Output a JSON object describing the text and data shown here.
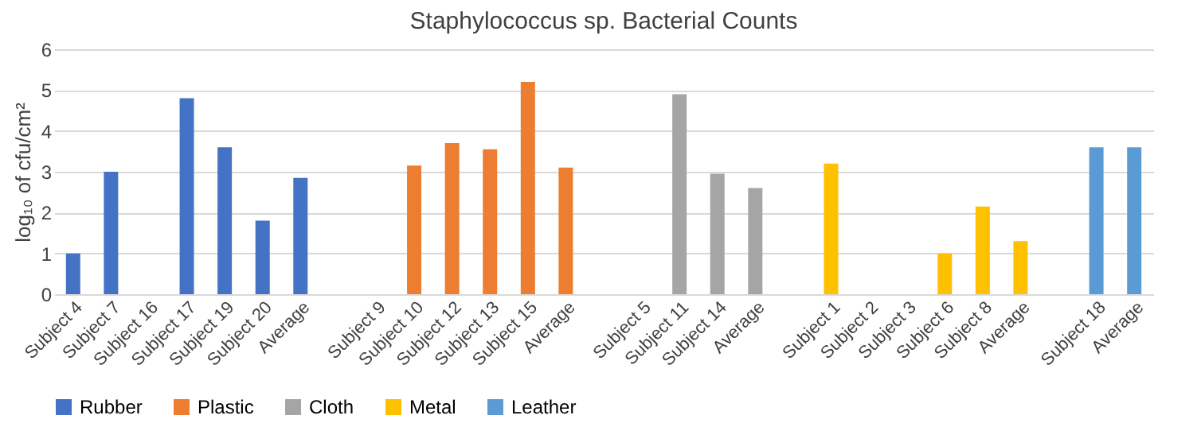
{
  "chart_data": {
    "type": "bar",
    "title": "Staphylococcus sp. Bacterial Counts",
    "ylabel": "log₁₀ of cfu/cm²",
    "categories": [
      "Subject 4",
      "Subject 7",
      "Subject 16",
      "Subject 17",
      "Subject 19",
      "Subject 20",
      "Average",
      null,
      "Subject 9",
      "Subject 10",
      "Subject 12",
      "Subject 13",
      "Subject 15",
      "Average",
      null,
      "Subject 5",
      "Subject 11",
      "Subject 14",
      "Average",
      null,
      "Subject 1",
      "Subject 2",
      "Subject 3",
      "Subject 6",
      "Subject 8",
      "Average",
      null,
      "Subject 18",
      "Average"
    ],
    "series": [
      {
        "name": "Rubber",
        "color": "#4472c4",
        "values": [
          1.0,
          3.0,
          0,
          4.8,
          3.6,
          1.8,
          2.85,
          null,
          null,
          null,
          null,
          null,
          null,
          null,
          null,
          null,
          null,
          null,
          null,
          null,
          null,
          null,
          null,
          null,
          null,
          null,
          null,
          null,
          null
        ]
      },
      {
        "name": "Plastic",
        "color": "#ed7d31",
        "values": [
          null,
          null,
          null,
          null,
          null,
          null,
          null,
          null,
          0,
          3.15,
          3.7,
          3.55,
          5.2,
          3.1,
          null,
          null,
          null,
          null,
          null,
          null,
          null,
          null,
          null,
          null,
          null,
          null,
          null,
          null,
          null
        ]
      },
      {
        "name": "Cloth",
        "color": "#a5a5a5",
        "values": [
          null,
          null,
          null,
          null,
          null,
          null,
          null,
          null,
          null,
          null,
          null,
          null,
          null,
          null,
          null,
          0,
          4.9,
          2.95,
          2.6,
          null,
          null,
          null,
          null,
          null,
          null,
          null,
          null,
          null,
          null
        ]
      },
      {
        "name": "Metal",
        "color": "#ffc000",
        "values": [
          null,
          null,
          null,
          null,
          null,
          null,
          null,
          null,
          null,
          null,
          null,
          null,
          null,
          null,
          null,
          null,
          null,
          null,
          null,
          null,
          3.2,
          0,
          0,
          1.0,
          2.15,
          1.3,
          null,
          null,
          null
        ]
      },
      {
        "name": "Leather",
        "color": "#5b9bd5",
        "values": [
          null,
          null,
          null,
          null,
          null,
          null,
          null,
          null,
          null,
          null,
          null,
          null,
          null,
          null,
          null,
          null,
          null,
          null,
          null,
          null,
          null,
          null,
          null,
          null,
          null,
          null,
          null,
          3.6,
          3.6
        ]
      }
    ],
    "ylim": [
      0,
      6
    ],
    "yticks": [
      0,
      1,
      2,
      3,
      4,
      5,
      6
    ],
    "grid": "y",
    "legend": "bottom"
  }
}
